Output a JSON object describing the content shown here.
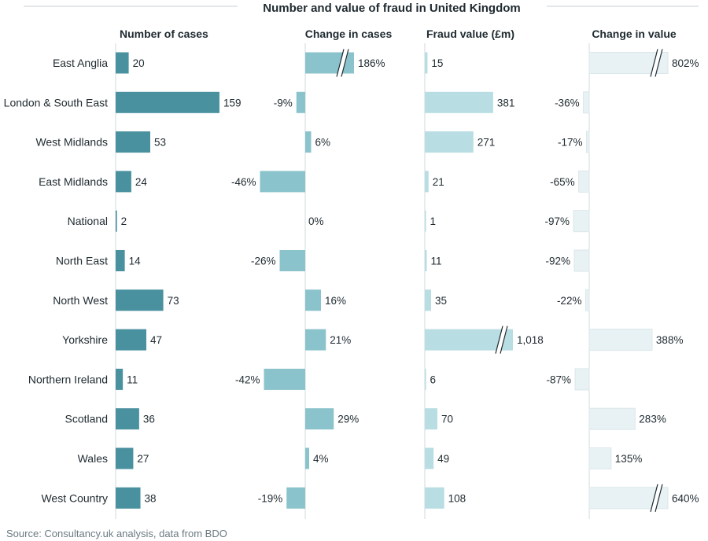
{
  "chart_data": {
    "type": "bar",
    "title": "Number and value of fraud in United Kingdom",
    "source": "Source: Consultancy.uk analysis, data from BDO",
    "categories": [
      "East Anglia",
      "London & South East",
      "West Midlands",
      "East Midlands",
      "National",
      "North East",
      "North West",
      "Yorkshire",
      "Northern Ireland",
      "Scotland",
      "Wales",
      "West Country"
    ],
    "series": [
      {
        "name": "Number of cases",
        "values": [
          20,
          159,
          53,
          24,
          2,
          14,
          73,
          47,
          11,
          36,
          27,
          38
        ],
        "labels": [
          "20",
          "159",
          "53",
          "24",
          "2",
          "14",
          "73",
          "47",
          "11",
          "36",
          "27",
          "38"
        ],
        "color": "#4a919f",
        "max": 159,
        "broken": []
      },
      {
        "name": "Change in cases",
        "values": [
          186,
          -9,
          6,
          -46,
          0,
          -26,
          16,
          21,
          -42,
          29,
          4,
          -19
        ],
        "labels": [
          "186%",
          "-9%",
          "6%",
          "-46%",
          "0%",
          "-26%",
          "16%",
          "21%",
          "-42%",
          "29%",
          "4%",
          "-19%"
        ],
        "color": "#8bc3cc",
        "max": 46,
        "broken": [
          0
        ]
      },
      {
        "name": "Fraud value (£m)",
        "values": [
          15,
          381,
          271,
          21,
          1,
          11,
          35,
          1018,
          6,
          70,
          49,
          108
        ],
        "labels": [
          "15",
          "381",
          "271",
          "21",
          "1",
          "11",
          "35",
          "1,018",
          "6",
          "70",
          "49",
          "108"
        ],
        "color": "#b8dde2",
        "max": 381,
        "broken": [
          7
        ]
      },
      {
        "name": "Change in value",
        "values": [
          802,
          -36,
          -17,
          -65,
          -97,
          -92,
          -22,
          388,
          -87,
          283,
          135,
          640
        ],
        "labels": [
          "802%",
          "-36%",
          "-17%",
          "-65%",
          "-97%",
          "-92%",
          "-22%",
          "388%",
          "-87%",
          "283%",
          "135%",
          "640%"
        ],
        "color": "#e8f2f4",
        "max": 388,
        "broken": [
          0,
          11
        ]
      }
    ]
  }
}
